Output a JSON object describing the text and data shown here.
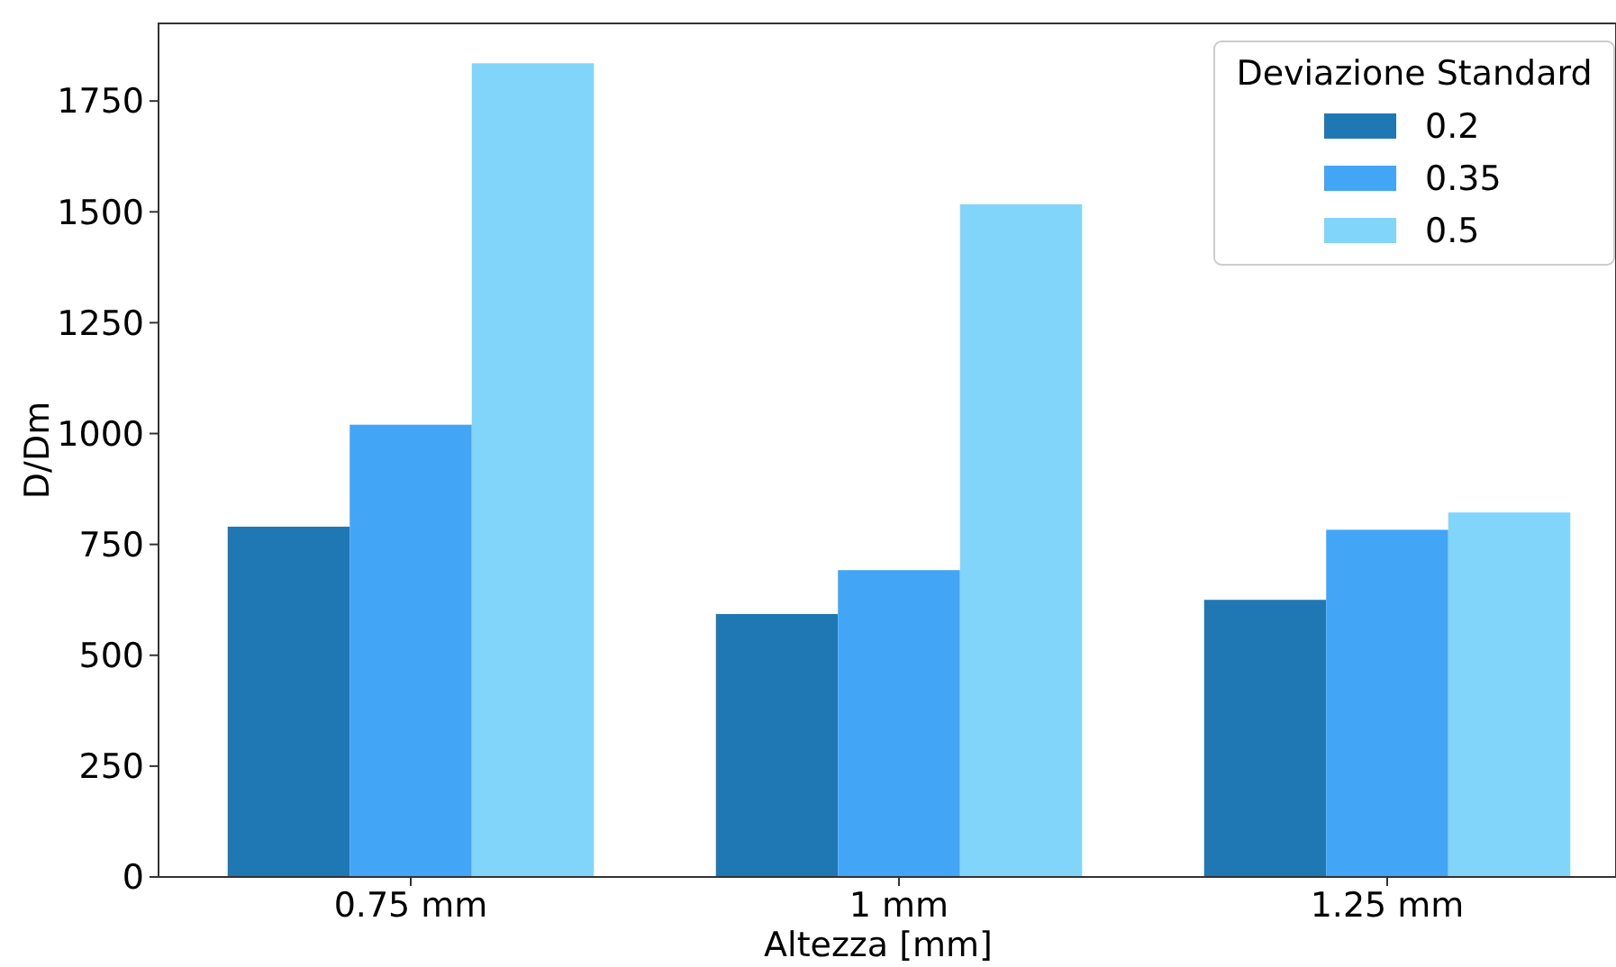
{
  "chart_data": {
    "type": "bar",
    "xlabel": "Altezza [mm]",
    "ylabel": "D/Dm",
    "legend_title": "Deviazione Standard",
    "legend": "top right",
    "categories": [
      "0.75 mm",
      "1 mm",
      "1.25 mm"
    ],
    "series": [
      {
        "name": "0.2",
        "color": "#1f77b4",
        "values": [
          790,
          593,
          625
        ]
      },
      {
        "name": "0.35",
        "color": "#42a5f5",
        "values": [
          1020,
          692,
          783
        ]
      },
      {
        "name": "0.5",
        "color": "#81d4fa",
        "values": [
          1835,
          1517,
          822
        ]
      }
    ],
    "ylim": [
      0,
      1925
    ],
    "yticks": [
      0,
      250,
      500,
      750,
      1000,
      1250,
      1500,
      1750
    ],
    "grid": false
  }
}
